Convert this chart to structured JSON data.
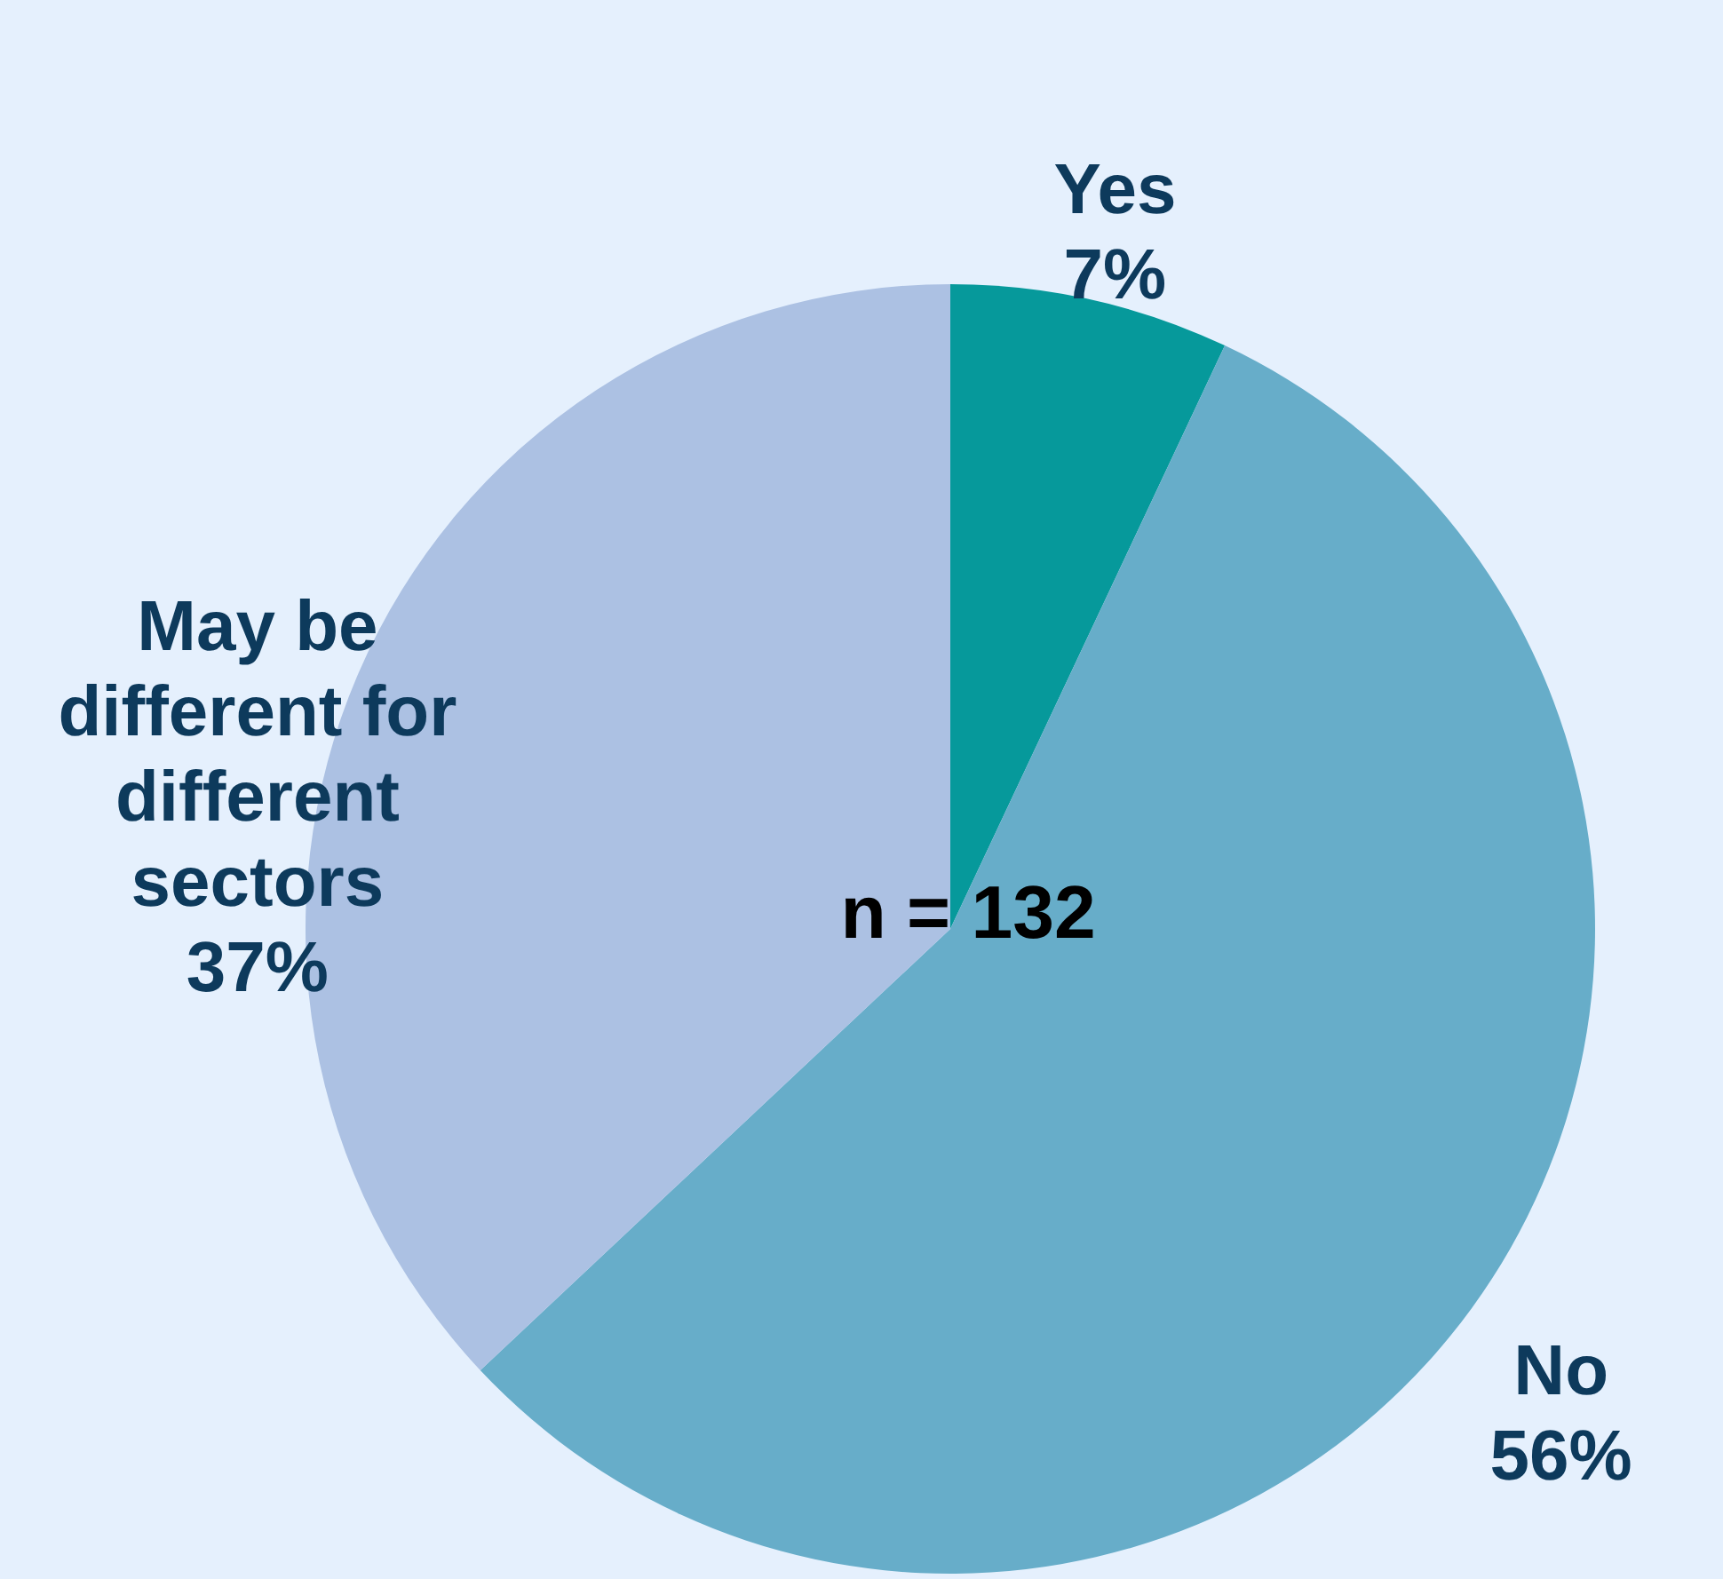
{
  "chart_data": {
    "type": "pie",
    "categories": [
      "Yes",
      "No",
      "May be different for different sectors"
    ],
    "values": [
      7,
      56,
      37
    ],
    "colors": [
      "#06999b",
      "#67adc9",
      "#acc1e3"
    ],
    "value_labels": [
      "7%",
      "56%",
      "37%"
    ],
    "annotations": [
      {
        "text": "n = 132"
      }
    ]
  }
}
